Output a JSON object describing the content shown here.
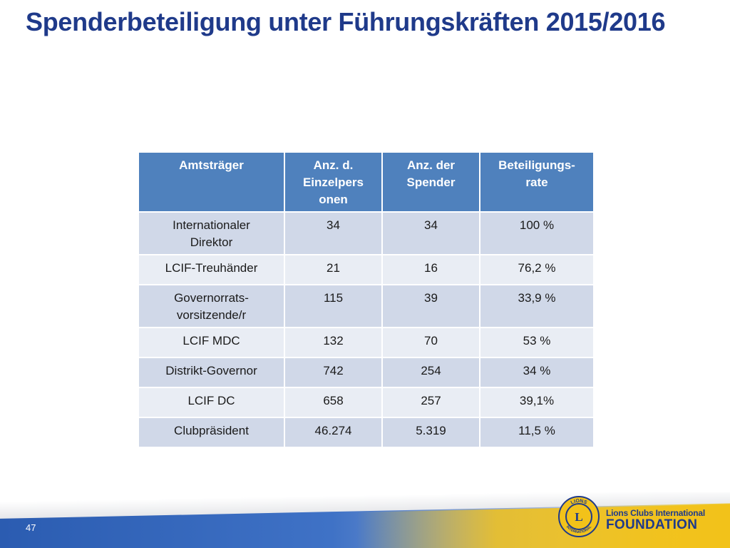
{
  "slide": {
    "title": "Spenderbeteiligung unter Führungskräften 2015/2016",
    "page_number": "47"
  },
  "table": {
    "headers": [
      "Amtsträger",
      "Anz. d. Einzelpers onen",
      "Anz. der Spender",
      "Beteiligungs-rate"
    ],
    "header_lines": [
      [
        "Amtsträger"
      ],
      [
        "Anz. d.",
        "Einzelpers",
        "onen"
      ],
      [
        "Anz. der",
        "Spender"
      ],
      [
        "Beteiligungs-",
        "rate"
      ]
    ],
    "rows": [
      {
        "office_lines": [
          "Internationaler",
          "Direktor"
        ],
        "individuals": "34",
        "donors": "34",
        "rate": "100 %"
      },
      {
        "office_lines": [
          "LCIF-Treuhänder"
        ],
        "individuals": "21",
        "donors": "16",
        "rate": "76,2 %"
      },
      {
        "office_lines": [
          "Governorrats-",
          "vorsitzende/r"
        ],
        "individuals": "115",
        "donors": "39",
        "rate": "33,9 %"
      },
      {
        "office_lines": [
          "LCIF MDC"
        ],
        "individuals": "132",
        "donors": "70",
        "rate": "53 %"
      },
      {
        "office_lines": [
          "Distrikt-Governor"
        ],
        "individuals": "742",
        "donors": "254",
        "rate": "34 %"
      },
      {
        "office_lines": [
          "LCIF DC"
        ],
        "individuals": "658",
        "donors": "257",
        "rate": "39,1%"
      },
      {
        "office_lines": [
          "Clubpräsident"
        ],
        "individuals": "46.274",
        "donors": "5.319",
        "rate": "11,5 %"
      }
    ]
  },
  "logo": {
    "emblem_top_text": "LIONS",
    "emblem_bottom_text": "INTERNATIONAL",
    "emblem_letter": "L",
    "line1": "Lions Clubs International",
    "line2": "FOUNDATION",
    "colors": {
      "gold": "#f2c21a",
      "blue": "#1f3a8a"
    }
  },
  "theme": {
    "title_color": "#1f3a8a",
    "header_bg": "#4f81bd",
    "row_odd_bg": "#d0d8e8",
    "row_even_bg": "#e9edf4"
  }
}
